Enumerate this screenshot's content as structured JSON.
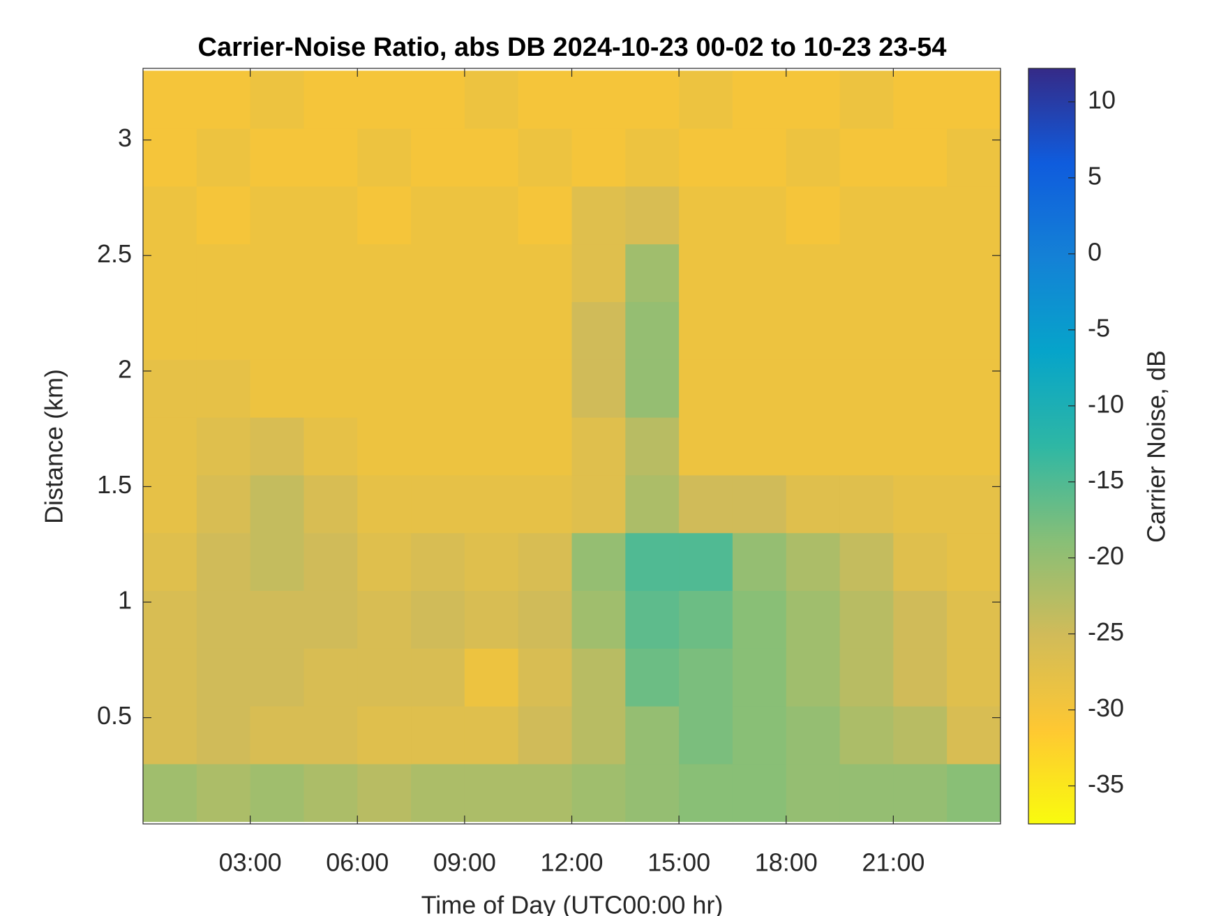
{
  "chart_data": {
    "type": "heatmap",
    "title": "Carrier-Noise Ratio, abs DB 2024-10-23 00-02 to 10-23 23-54",
    "x_label": "Time of Day (UTC00:00 hr)",
    "y_label": "Distance (km)",
    "colorbar_label": "Carrier Noise, dB",
    "colormap": "parula",
    "colormap_reversed": true,
    "xlim": [
      0,
      24
    ],
    "xticks": [
      {
        "value": 3,
        "label": "03:00"
      },
      {
        "value": 6,
        "label": "06:00"
      },
      {
        "value": 9,
        "label": "09:00"
      },
      {
        "value": 12,
        "label": "12:00"
      },
      {
        "value": 15,
        "label": "15:00"
      },
      {
        "value": 18,
        "label": "18:00"
      },
      {
        "value": 21,
        "label": "21:00"
      }
    ],
    "ylim": [
      0.04,
      3.31
    ],
    "yticks": [
      0.5,
      1,
      1.5,
      2,
      2.5,
      3
    ],
    "clim": [
      -37.5,
      12.2
    ],
    "cticks": [
      -35,
      -30,
      -25,
      -20,
      -15,
      -10,
      -5,
      0,
      5,
      10
    ],
    "x": [
      0.75,
      2.25,
      3.75,
      5.25,
      6.75,
      8.25,
      9.75,
      11.25,
      12.75,
      14.25,
      15.75,
      17.25,
      18.75,
      20.25,
      21.75,
      23.25
    ],
    "y": [
      0.175,
      0.425,
      0.675,
      0.925,
      1.175,
      1.425,
      1.675,
      1.925,
      2.175,
      2.425,
      2.675,
      2.925,
      3.175
    ],
    "z": [
      [
        -21,
        -22,
        -21,
        -22,
        -23,
        -22,
        -22,
        -22,
        -21,
        -20,
        -19,
        -19,
        -20,
        -20,
        -20,
        -19
      ],
      [
        -26,
        -25,
        -26,
        -26,
        -27,
        -27,
        -27,
        -25,
        -23,
        -20,
        -18,
        -19,
        -20,
        -22,
        -23,
        -26
      ],
      [
        -26,
        -25,
        -25,
        -26,
        -26,
        -26,
        -29,
        -26,
        -23,
        -17,
        -18,
        -19,
        -21,
        -23,
        -25,
        -27
      ],
      [
        -26,
        -25,
        -25,
        -25,
        -26,
        -25,
        -26,
        -25,
        -21,
        -16,
        -17,
        -19,
        -21,
        -23,
        -25,
        -27
      ],
      [
        -27,
        -25,
        -24,
        -25,
        -27,
        -26,
        -27,
        -26,
        -20,
        -15,
        -15,
        -20,
        -22,
        -24,
        -27,
        -28
      ],
      [
        -28,
        -26,
        -24,
        -26,
        -28,
        -28,
        -28,
        -28,
        -27,
        -22,
        -25,
        -25,
        -27,
        -27,
        -28,
        -28
      ],
      [
        -28,
        -27,
        -26,
        -28,
        -29,
        -29,
        -29,
        -29,
        -27,
        -23,
        -29,
        -29,
        -29,
        -29,
        -29,
        -29
      ],
      [
        -28,
        -28,
        -29,
        -29,
        -29,
        -29,
        -29,
        -29,
        -25,
        -20,
        -29,
        -29,
        -29,
        -29,
        -29,
        -29
      ],
      [
        -29,
        -29,
        -29,
        -29,
        -29,
        -29,
        -29,
        -29,
        -25,
        -20,
        -29,
        -29,
        -29,
        -29,
        -29,
        -29
      ],
      [
        -29,
        -29,
        -29,
        -29,
        -29,
        -29,
        -29,
        -29,
        -27,
        -21,
        -29,
        -29,
        -29,
        -29,
        -29,
        -29
      ],
      [
        -29,
        -30,
        -29,
        -29,
        -30,
        -29,
        -29,
        -30,
        -27,
        -26,
        -29,
        -29,
        -30,
        -29,
        -29,
        -29
      ],
      [
        -30,
        -29,
        -30,
        -30,
        -29,
        -30,
        -30,
        -29,
        -30,
        -29,
        -30,
        -30,
        -29,
        -30,
        -30,
        -29
      ],
      [
        -30,
        -30,
        -29,
        -30,
        -30,
        -30,
        -29,
        -30,
        -30,
        -30,
        -29,
        -30,
        -30,
        -29,
        -30,
        -30
      ]
    ]
  }
}
